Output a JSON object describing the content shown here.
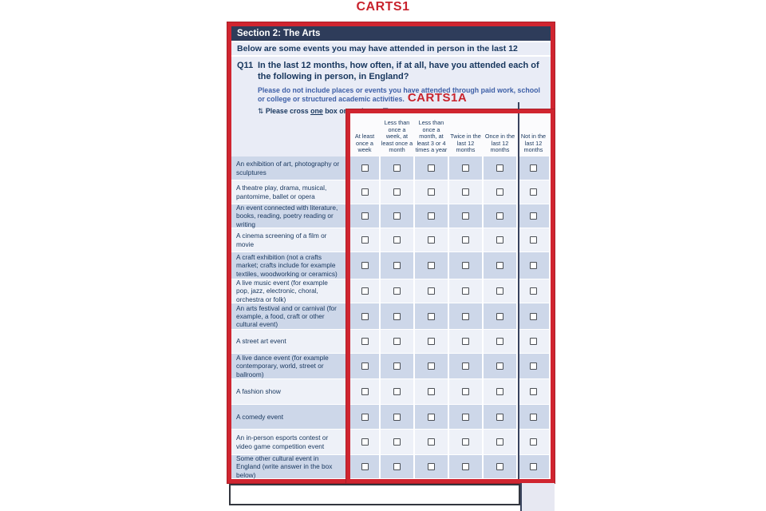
{
  "annotations": {
    "carts1": "CARTS1",
    "carts1a": "CARTS1A"
  },
  "section": {
    "title": "Section 2: The Arts"
  },
  "intro": "Below are some events you may have attended in person in the last 12 months.",
  "question": {
    "number": "Q11",
    "text": "In the last 12 months, how often, if at all, have you attended each of the following in person, in England?",
    "note": "Please do not include places or events you have attended through paid work, school or college or structured academic activities.",
    "instruction_icon_left": "⇅",
    "instruction_prefix": "Please cross",
    "instruction_underlined": "one",
    "instruction_suffix": "box on each row",
    "instruction_icon_right": "☒"
  },
  "grid": {
    "columns": [
      "At least once a week",
      "Less than once a week, at least once a month",
      "Less than once a month, at least 3 or 4 times a year",
      "Twice in the last 12 months",
      "Once in the last 12 months",
      "Not in the last 12 months"
    ],
    "rows": [
      "An exhibition of art, photography or sculptures",
      "A theatre play, drama, musical, pantomime, ballet or opera",
      "An event connected with literature, books, reading, poetry reading or writing",
      "A cinema screening of a film or movie",
      "A craft exhibition (not a crafts market; crafts include for example textiles, woodworking or ceramics)",
      "A live music event (for example pop, jazz, electronic, choral, orchestra or folk)",
      "An arts festival and or carnival (for example, a food, craft or other cultural event)",
      "A street art event",
      "A live dance event (for example contemporary, world, street or ballroom)",
      "A fashion show",
      "A comedy event",
      "An in-person esports contest or video game competition event",
      "Some other cultural event in England (write answer in the box below)"
    ]
  },
  "colors": {
    "annotation_red": "#d02530",
    "section_bar_navy": "#2e3c5a",
    "text_navy": "#17365d",
    "note_blue": "#3d5fa7",
    "row_dark": "#cdd7e9",
    "row_light": "#eef1f8",
    "panel_lavender": "#e9ecf6",
    "divider_navy": "#39435e",
    "header_bg": "#fbfbfd"
  }
}
